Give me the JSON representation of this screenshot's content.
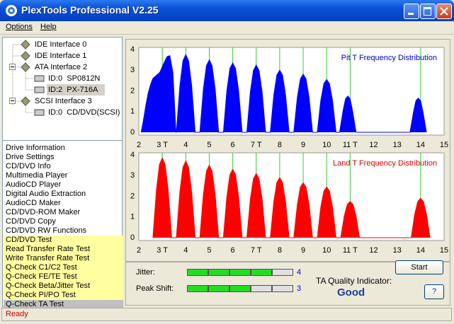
{
  "window": {
    "title": "PlexTools Professional V2.25"
  },
  "menu": [
    "Options",
    "Help"
  ],
  "tree": [
    "IDE Interface 0",
    "IDE Interface 1",
    "ATA Interface 2",
    "ID:0  SP0812N",
    "ID:2  PX-716A",
    "SCSI Interface 3",
    "ID:0  CD/DVD(SCSI)"
  ],
  "functions": [
    "Drive Information",
    "Drive Settings",
    "CD/DVD Info",
    "Multimedia Player",
    "AudioCD Player",
    "Digital Audio Extraction",
    "AudioCD Maker",
    "CD/DVD-ROM Maker",
    "CD/DVD Copy",
    "CD/DVD RW Functions",
    "CD/DVD Test",
    "Read Transfer Rate Test",
    "Write Transfer Rate Test",
    "Q-Check C1/C2 Test",
    "Q-Check FE/TE Test",
    "Q-Check Beta/Jitter Test",
    "Q-Check PI/PO Test",
    "Q-Check TA Test"
  ],
  "chart_data": [
    {
      "type": "area",
      "title": "Pit T Frequency Distribution",
      "color": "#0000ff",
      "title_color": "#0000cc",
      "ref_color": "#33cc33",
      "ref_lines": [
        3,
        4,
        5,
        6,
        7,
        8,
        9,
        10,
        11,
        14
      ],
      "xlim": [
        2,
        15
      ],
      "ylim": [
        0,
        4.1
      ],
      "xticks": [
        2,
        {
          "value": 3,
          "label": "3 T"
        },
        4,
        5,
        6,
        {
          "value": 7,
          "label": "7 T"
        },
        8,
        9,
        10,
        {
          "value": 11,
          "label": "11 T"
        },
        12,
        13,
        14,
        15
      ],
      "yticks": [
        0,
        1,
        2,
        3,
        4
      ],
      "x": [
        2.1,
        2.2,
        2.3,
        2.4,
        2.5,
        2.6,
        2.75,
        2.9,
        3.05,
        3.2,
        3.32,
        3.45,
        3.58,
        3.6,
        3.75,
        3.88,
        4,
        4.12,
        4.25,
        4.4,
        4.6,
        4.75,
        4.88,
        5,
        5.12,
        5.25,
        5.4,
        5.6,
        5.75,
        5.88,
        6,
        6.12,
        6.25,
        6.4,
        6.6,
        6.75,
        6.88,
        7,
        7.12,
        7.25,
        7.4,
        7.6,
        7.75,
        7.88,
        8,
        8.12,
        8.25,
        8.4,
        8.6,
        8.75,
        8.88,
        9,
        9.12,
        9.25,
        9.4,
        9.6,
        9.75,
        9.88,
        10,
        10.12,
        10.25,
        10.4,
        10.55,
        10.7,
        10.8,
        10.9,
        11,
        11.1,
        11.25,
        13.55,
        13.7,
        13.8,
        13.9,
        14,
        14.1,
        14.25
      ],
      "values": [
        0,
        0.6,
        1.3,
        1.9,
        2.3,
        2.6,
        2.75,
        2.9,
        3.3,
        3.65,
        3.7,
        2.9,
        0,
        0,
        2.25,
        3.45,
        3.75,
        3.45,
        2.25,
        0,
        0,
        2.1,
        3.22,
        3.5,
        3.22,
        2.1,
        0,
        0,
        2.01,
        3.08,
        3.35,
        3.08,
        2.01,
        0,
        0,
        1.95,
        2.99,
        3.25,
        2.99,
        1.95,
        0,
        0,
        1.8,
        2.76,
        3.0,
        2.76,
        1.8,
        0,
        0,
        1.68,
        2.58,
        2.8,
        2.58,
        1.68,
        0,
        0,
        1.53,
        2.35,
        2.55,
        2.35,
        1.53,
        0,
        0,
        1.05,
        1.61,
        1.75,
        1.61,
        1.05,
        0,
        0,
        0.99,
        1.52,
        1.65,
        1.52,
        0.99,
        0
      ]
    },
    {
      "type": "area",
      "title": "Land T Frequency Distribution",
      "color": "#ff0000",
      "title_color": "#dd0000",
      "ref_color": "#33cc33",
      "ref_lines": [
        3,
        4,
        5,
        6,
        7,
        8,
        9,
        10,
        11,
        14
      ],
      "xlim": [
        2,
        15
      ],
      "ylim": [
        0,
        4.1
      ],
      "xticks": [
        2,
        {
          "value": 3,
          "label": "3 T"
        },
        4,
        5,
        6,
        {
          "value": 7,
          "label": "7 T"
        },
        8,
        9,
        10,
        {
          "value": 11,
          "label": "11 T"
        },
        12,
        13,
        14,
        15
      ],
      "yticks": [
        0,
        1,
        2,
        3,
        4
      ],
      "x": [
        2.6,
        2.75,
        2.88,
        3,
        3.12,
        3.25,
        3.4,
        3.6,
        3.75,
        3.88,
        4,
        4.12,
        4.25,
        4.4,
        4.6,
        4.75,
        4.88,
        5,
        5.12,
        5.25,
        5.4,
        5.6,
        5.75,
        5.88,
        6,
        6.12,
        6.25,
        6.4,
        6.6,
        6.75,
        6.88,
        7,
        7.12,
        7.25,
        7.4,
        7.6,
        7.75,
        7.88,
        8,
        8.12,
        8.25,
        8.4,
        8.6,
        8.75,
        8.88,
        9,
        9.12,
        9.25,
        9.4,
        9.6,
        9.75,
        9.88,
        10,
        10.12,
        10.25,
        10.4,
        10.6,
        10.75,
        10.88,
        11,
        11.12,
        11.25,
        11.4,
        13.6,
        13.75,
        13.88,
        14,
        14.12,
        14.25,
        14.4
      ],
      "values": [
        0,
        2.31,
        3.54,
        3.85,
        3.54,
        2.31,
        0,
        0,
        2.22,
        3.4,
        3.7,
        3.4,
        2.22,
        0,
        0,
        2.1,
        3.22,
        3.5,
        3.22,
        2.1,
        0,
        0,
        1.98,
        3.04,
        3.3,
        3.04,
        1.98,
        0,
        0,
        1.86,
        2.85,
        3.1,
        2.85,
        1.86,
        0,
        0,
        1.74,
        2.67,
        2.9,
        2.67,
        1.74,
        0,
        0,
        1.59,
        2.44,
        2.65,
        2.44,
        1.59,
        0,
        0,
        1.47,
        2.25,
        2.45,
        2.25,
        1.47,
        0,
        0,
        1.05,
        1.61,
        1.75,
        1.61,
        1.05,
        0,
        0,
        1.14,
        1.75,
        1.9,
        1.75,
        1.14,
        0
      ]
    }
  ],
  "results": {
    "jitter_label": "Jitter:",
    "jitter": 4,
    "peak_shift_label": "Peak Shift:",
    "peak_shift": 3,
    "quality_label": "TA Quality Indicator:",
    "quality": "Good",
    "start": "Start",
    "help": "?"
  },
  "status": "Ready"
}
